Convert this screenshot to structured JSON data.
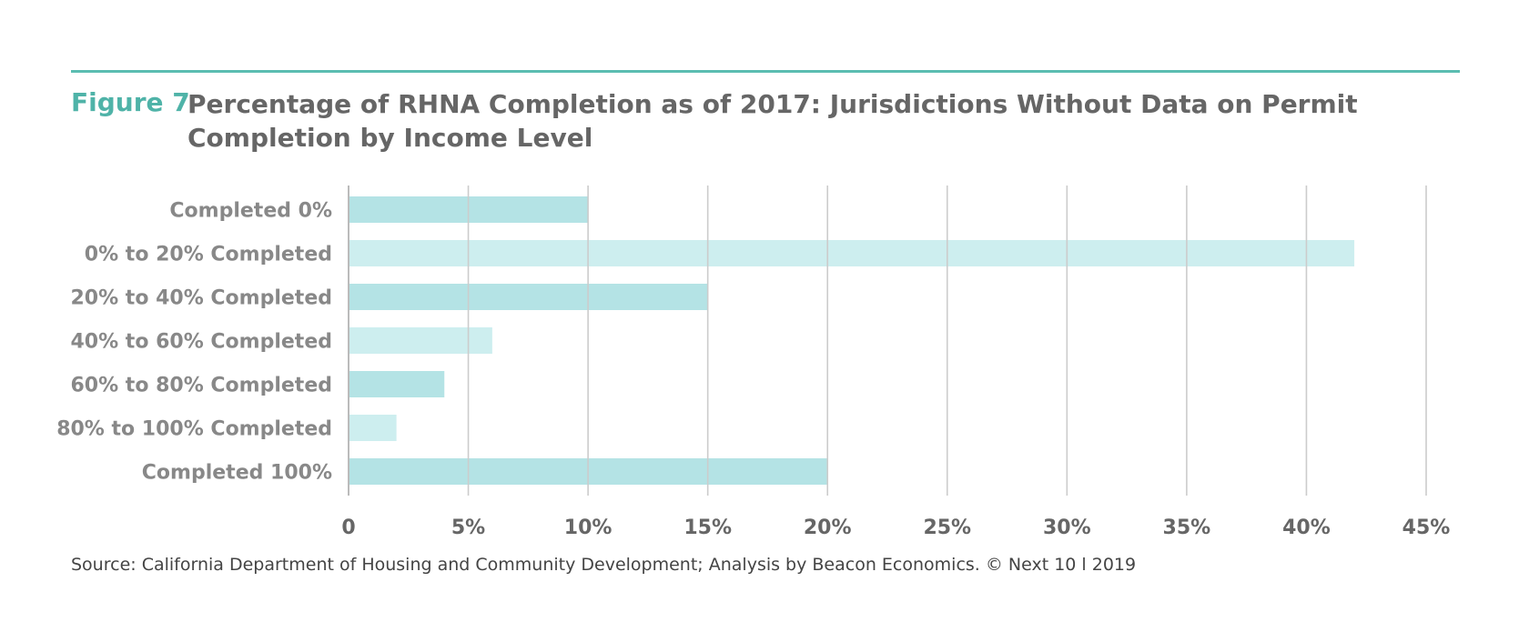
{
  "figure_label": "Figure 7",
  "title": "Percentage of RHNA Completion as of 2017: Jurisdictions Without Data on Permit Completion by Income Level",
  "source": "Source: California Department of Housing and Community Development; Analysis by Beacon Economics. © Next 10 l 2019",
  "colors": {
    "accent": "#4fb3a8",
    "bar_dark": "#b4e3e5",
    "bar_light": "#cdeeef",
    "grid": "#cccccc",
    "label": "#888888"
  },
  "chart_data": {
    "type": "bar",
    "orientation": "horizontal",
    "categories": [
      "Completed 0%",
      "0% to 20% Completed",
      "20% to 40% Completed",
      "40% to 60% Completed",
      "60% to 80% Completed",
      "80% to 100% Completed",
      "Completed 100%"
    ],
    "values": [
      10,
      42,
      15,
      6,
      4,
      2,
      20
    ],
    "xlim": [
      0,
      45
    ],
    "xticks": [
      0,
      5,
      10,
      15,
      20,
      25,
      30,
      35,
      40,
      45
    ],
    "xtick_labels": [
      "0",
      "5%",
      "10%",
      "15%",
      "20%",
      "25%",
      "30%",
      "35%",
      "40%",
      "45%"
    ],
    "grid": true,
    "xlabel": "",
    "ylabel": ""
  }
}
